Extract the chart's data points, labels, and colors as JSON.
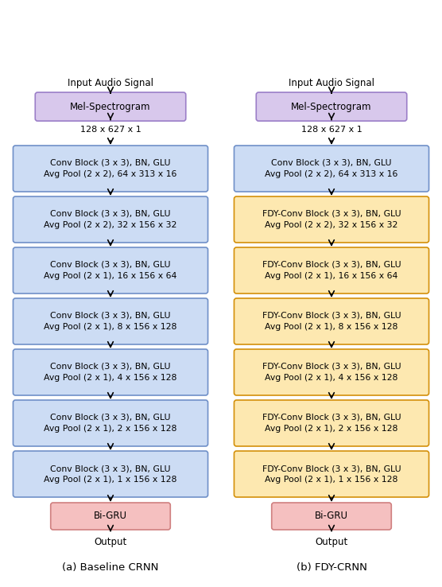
{
  "fig_width": 5.56,
  "fig_height": 7.38,
  "dpi": 100,
  "left_title": "(a) Baseline CRNN",
  "right_title": "(b) FDY-CRNN",
  "mel_box_color": "#d8c8ec",
  "mel_box_edge": "#9b7ec8",
  "bigru_box_color": "#f5c0c0",
  "bigru_box_edge": "#d08080",
  "conv_box_color": "#ccdcf4",
  "conv_box_edge": "#7090c8",
  "fdy_box_color": "#fde8b0",
  "fdy_box_edge": "#d4900a",
  "input_text": "Input Audio Signal",
  "mel_text": "Mel-Spectrogram",
  "size_text": "128 x 627 x 1",
  "bigru_text": "Bi-GRU",
  "output_text": "Output",
  "left_blocks": [
    "Conv Block (3 x 3), BN, GLU\nAvg Pool (2 x 2), 64 x 313 x 16",
    "Conv Block (3 x 3), BN, GLU\nAvg Pool (2 x 2), 32 x 156 x 32",
    "Conv Block (3 x 3), BN, GLU\nAvg Pool (2 x 1), 16 x 156 x 64",
    "Conv Block (3 x 3), BN, GLU\nAvg Pool (2 x 1), 8 x 156 x 128",
    "Conv Block (3 x 3), BN, GLU\nAvg Pool (2 x 1), 4 x 156 x 128",
    "Conv Block (3 x 3), BN, GLU\nAvg Pool (2 x 1), 2 x 156 x 128",
    "Conv Block (3 x 3), BN, GLU\nAvg Pool (2 x 1), 1 x 156 x 128"
  ],
  "right_blocks": [
    "Conv Block (3 x 3), BN, GLU\nAvg Pool (2 x 2), 64 x 313 x 16",
    "FDY-Conv Block (3 x 3), BN, GLU\nAvg Pool (2 x 2), 32 x 156 x 32",
    "FDY-Conv Block (3 x 3), BN, GLU\nAvg Pool (2 x 1), 16 x 156 x 64",
    "FDY-Conv Block (3 x 3), BN, GLU\nAvg Pool (2 x 1), 8 x 156 x 128",
    "FDY-Conv Block (3 x 3), BN, GLU\nAvg Pool (2 x 1), 4 x 156 x 128",
    "FDY-Conv Block (3 x 3), BN, GLU\nAvg Pool (2 x 1), 2 x 156 x 128",
    "FDY-Conv Block (3 x 3), BN, GLU\nAvg Pool (2 x 1), 1 x 156 x 128"
  ],
  "right_block_colors": [
    "conv",
    "fdy",
    "fdy",
    "fdy",
    "fdy",
    "fdy",
    "fdy"
  ],
  "block_fontsize": 7.8,
  "label_fontsize": 8.5,
  "caption_fontsize": 9.5
}
